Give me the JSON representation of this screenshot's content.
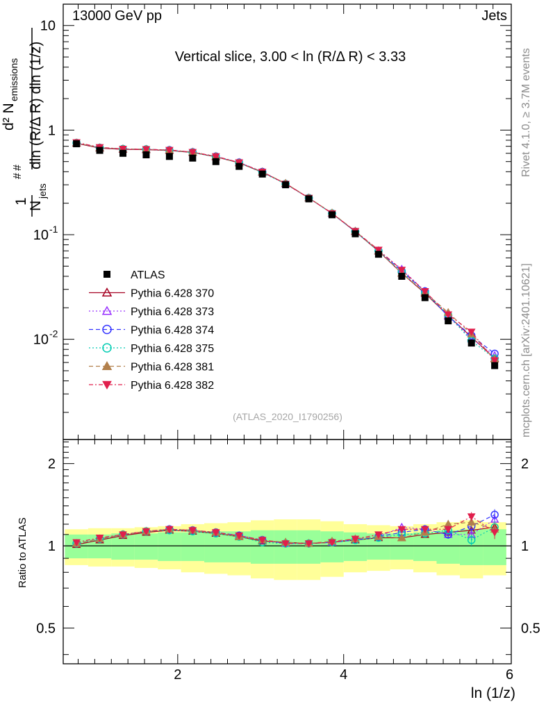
{
  "header": {
    "left": "13000 GeV pp",
    "right": "Jets",
    "slice": "Vertical slice, 3.00 < ln (R/Δ R) < 3.33",
    "analysis": "(ATLAS_2020_I1790256)",
    "side_top": "Rivet 4.1.0, ≥ 3.7M events",
    "side_bottom": "mcplots.cern.ch [arXiv:2401.10621]"
  },
  "chart_data": {
    "type": "scatter",
    "title": "Vertical slice, 3.00 < ln (R/Δ R) < 3.33",
    "xlabel": "ln (1/z)",
    "ylabel": "#frac{1}{N_{jets}} #frac{d² N_{emissions}}{dln (R/Δ R) dln (1/z)}",
    "ratio_ylabel": "Ratio to ATLAS",
    "xlim": [
      0.62,
      6.02
    ],
    "ylim": [
      0.0011,
      16
    ],
    "yscale": "log",
    "ratio_ylim": [
      0.37,
      2.45
    ],
    "x_ticks": [
      2,
      4,
      6
    ],
    "x_tick_labels": [
      "2",
      "4",
      "6"
    ],
    "y_ticks": [
      0.01,
      0.1,
      1,
      10
    ],
    "y_tick_labels": [
      "10^-2",
      "10^-1",
      "1",
      "10"
    ],
    "ratio_ticks": [
      0.5,
      1,
      2
    ],
    "ratio_tick_labels": [
      "0.5",
      "1",
      "2"
    ],
    "x": [
      0.78,
      1.06,
      1.34,
      1.62,
      1.9,
      2.18,
      2.46,
      2.74,
      3.02,
      3.3,
      3.58,
      3.86,
      4.14,
      4.42,
      4.7,
      4.98,
      5.26,
      5.54,
      5.82
    ],
    "band_edges": [
      0.64,
      0.92,
      1.2,
      1.48,
      1.76,
      2.04,
      2.32,
      2.6,
      2.88,
      3.16,
      3.44,
      3.72,
      4.0,
      4.28,
      4.56,
      4.84,
      5.12,
      5.4,
      5.68,
      5.96
    ],
    "data": {
      "name": "ATLAS",
      "values": [
        0.74,
        0.64,
        0.6,
        0.58,
        0.56,
        0.54,
        0.5,
        0.45,
        0.38,
        0.3,
        0.22,
        0.155,
        0.102,
        0.065,
        0.04,
        0.025,
        0.015,
        0.0092,
        0.0056
      ],
      "stat_band_half": [
        0.1,
        0.1,
        0.11,
        0.11,
        0.12,
        0.12,
        0.13,
        0.13,
        0.14,
        0.14,
        0.14,
        0.13,
        0.12,
        0.11,
        0.11,
        0.12,
        0.14,
        0.15,
        0.15
      ],
      "total_band_half": [
        0.15,
        0.16,
        0.16,
        0.17,
        0.18,
        0.2,
        0.21,
        0.22,
        0.24,
        0.25,
        0.25,
        0.23,
        0.2,
        0.19,
        0.18,
        0.2,
        0.22,
        0.24,
        0.22
      ]
    },
    "band_colors": {
      "stat": "#99ff99",
      "total": "#ffff99"
    },
    "series": [
      {
        "name": "Pythia 6.428 370",
        "color": "#a50021",
        "marker": "triangle-open",
        "dash": "solid",
        "ratio": [
          1.01,
          1.05,
          1.09,
          1.12,
          1.14,
          1.13,
          1.11,
          1.08,
          1.04,
          1.03,
          1.02,
          1.03,
          1.05,
          1.07,
          1.07,
          1.1,
          1.12,
          1.14,
          1.17
        ]
      },
      {
        "name": "Pythia 6.428 373",
        "color": "#9933ff",
        "marker": "triangle-open",
        "dash": "dotted",
        "ratio": [
          1.02,
          1.06,
          1.1,
          1.13,
          1.15,
          1.14,
          1.12,
          1.09,
          1.05,
          1.02,
          1.02,
          1.03,
          1.06,
          1.08,
          1.17,
          1.15,
          1.1,
          1.1,
          1.25
        ]
      },
      {
        "name": "Pythia 6.428 374",
        "color": "#3333ff",
        "marker": "circle-open",
        "dash": "dashed",
        "ratio": [
          1.02,
          1.06,
          1.1,
          1.13,
          1.15,
          1.14,
          1.12,
          1.09,
          1.05,
          1.02,
          1.02,
          1.03,
          1.05,
          1.08,
          1.12,
          1.15,
          1.1,
          1.18,
          1.3
        ]
      },
      {
        "name": "Pythia 6.428 375",
        "color": "#00ccb2",
        "marker": "circle-open",
        "dash": "dotted",
        "ratio": [
          1.02,
          1.06,
          1.1,
          1.13,
          1.14,
          1.13,
          1.11,
          1.08,
          1.03,
          1.02,
          1.02,
          1.03,
          1.05,
          1.07,
          1.1,
          1.11,
          1.14,
          1.05,
          1.17
        ]
      },
      {
        "name": "Pythia 6.428 381",
        "color": "#b2804c",
        "marker": "triangle-filled",
        "dash": "dashed",
        "ratio": [
          1.02,
          1.06,
          1.1,
          1.13,
          1.15,
          1.14,
          1.12,
          1.08,
          1.05,
          1.03,
          1.02,
          1.04,
          1.06,
          1.08,
          1.07,
          1.12,
          1.2,
          1.22,
          1.15
        ]
      },
      {
        "name": "Pythia 6.428 382",
        "color": "#e01f4c",
        "marker": "triangle-down-filled",
        "dash": "dashdot",
        "ratio": [
          1.03,
          1.07,
          1.1,
          1.13,
          1.15,
          1.14,
          1.12,
          1.09,
          1.05,
          1.02,
          1.02,
          1.03,
          1.06,
          1.1,
          1.15,
          1.15,
          1.15,
          1.28,
          1.12
        ]
      }
    ]
  }
}
